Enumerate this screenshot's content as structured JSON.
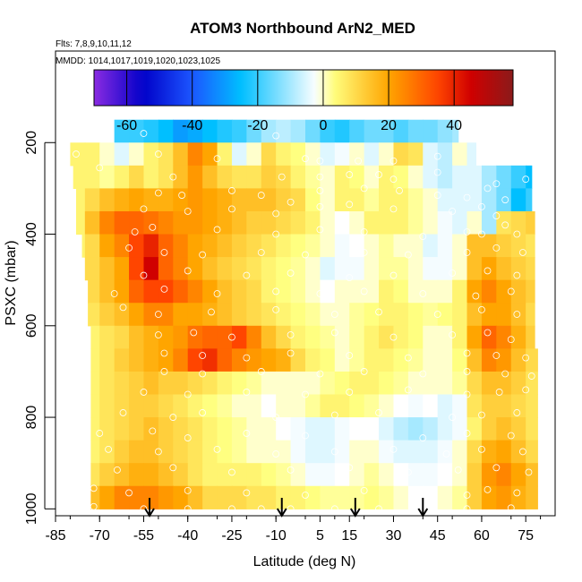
{
  "chart_data": {
    "type": "heatmap",
    "title": "ATOM3 Northbound ArN2_MED",
    "subtitle_flights": "Flts: 7,8,9,10,11,12",
    "subtitle_dates": "MMDD: 1014,1017,1019,1020,1023,1025",
    "xlabel": "Latitude (deg N)",
    "ylabel": "PSXC (mbar)",
    "x_ticks": [
      -85,
      -70,
      -55,
      -40,
      -25,
      -10,
      5,
      15,
      30,
      45,
      60,
      75
    ],
    "y_ticks": [
      200,
      400,
      600,
      800,
      1000
    ],
    "xlim": [
      -85,
      85
    ],
    "ylim": [
      1015,
      0
    ],
    "colorbar": {
      "ticks": [
        -60,
        -40,
        -20,
        0,
        20,
        40
      ],
      "range": [
        -70,
        58
      ],
      "colors": [
        "#8a2be2",
        "#0000c8",
        "#1c56ff",
        "#00bfff",
        "#ffffff",
        "#ffff80",
        "#ffa500",
        "#ff4500",
        "#d00000",
        "#8b1a1a"
      ]
    },
    "layers_mbar": [
      175,
      225,
      275,
      325,
      375,
      425,
      475,
      525,
      575,
      625,
      675,
      725,
      775,
      825,
      875,
      925,
      975
    ],
    "layer_extent_deg": [
      [
        -65,
        52
      ],
      [
        -80,
        58
      ],
      [
        -79,
        77
      ],
      [
        -78,
        77
      ],
      [
        -78,
        78
      ],
      [
        -76,
        78
      ],
      [
        -75,
        78
      ],
      [
        -74,
        78
      ],
      [
        -74,
        78
      ],
      [
        -73,
        78
      ],
      [
        -73,
        79
      ],
      [
        -73,
        79
      ],
      [
        -73,
        79
      ],
      [
        -73,
        79
      ],
      [
        -73,
        79
      ],
      [
        -73,
        79
      ],
      [
        -73,
        79
      ]
    ],
    "lat_bins_deg": [
      -80,
      -75,
      -70,
      -65,
      -60,
      -55,
      -50,
      -45,
      -40,
      -35,
      -30,
      -25,
      -20,
      -15,
      -10,
      -5,
      0,
      5,
      10,
      15,
      20,
      25,
      30,
      35,
      40,
      45,
      50,
      55,
      60,
      65,
      70,
      75
    ],
    "values": [
      [
        0,
        0,
        0,
        -20,
        -20,
        -22,
        -25,
        -30,
        -28,
        -25,
        -22,
        -20,
        -15,
        -10,
        -8,
        -10,
        -15,
        -20,
        -22,
        -18,
        -15,
        -15,
        -18,
        -15,
        -15,
        -12,
        -10,
        0,
        0,
        0,
        0,
        0
      ],
      [
        5,
        5,
        0,
        -5,
        0,
        5,
        8,
        15,
        25,
        20,
        5,
        -5,
        0,
        10,
        5,
        3,
        0,
        -5,
        -3,
        0,
        -5,
        0,
        10,
        8,
        -5,
        -8,
        0,
        -5,
        -5,
        -5,
        0,
        0
      ],
      [
        5,
        5,
        2,
        5,
        10,
        5,
        8,
        15,
        22,
        15,
        10,
        8,
        8,
        12,
        10,
        5,
        2,
        0,
        5,
        3,
        0,
        5,
        3,
        0,
        -5,
        -8,
        -5,
        -5,
        -10,
        -15,
        -20,
        -25
      ],
      [
        5,
        10,
        15,
        18,
        20,
        18,
        18,
        20,
        22,
        20,
        18,
        15,
        15,
        15,
        12,
        10,
        3,
        0,
        5,
        5,
        2,
        5,
        5,
        2,
        0,
        -5,
        -5,
        -5,
        -10,
        -15,
        -25,
        -20
      ],
      [
        5,
        15,
        25,
        30,
        30,
        28,
        25,
        22,
        22,
        20,
        18,
        15,
        12,
        12,
        10,
        8,
        5,
        0,
        -2,
        0,
        5,
        5,
        5,
        2,
        0,
        -3,
        -5,
        0,
        -10,
        8,
        10,
        12
      ],
      [
        5,
        10,
        20,
        25,
        35,
        40,
        30,
        25,
        20,
        18,
        15,
        12,
        10,
        8,
        5,
        3,
        2,
        0,
        -3,
        -2,
        0,
        2,
        0,
        0,
        -5,
        -3,
        0,
        15,
        15,
        12,
        10,
        8
      ],
      [
        5,
        10,
        15,
        20,
        35,
        45,
        30,
        25,
        20,
        15,
        12,
        10,
        8,
        5,
        3,
        2,
        0,
        -5,
        -3,
        -3,
        0,
        2,
        2,
        0,
        -3,
        -3,
        0,
        15,
        20,
        15,
        12,
        10
      ],
      [
        5,
        10,
        15,
        20,
        30,
        35,
        35,
        30,
        25,
        20,
        15,
        12,
        10,
        5,
        3,
        2,
        0,
        -2,
        0,
        0,
        0,
        5,
        3,
        0,
        0,
        0,
        5,
        20,
        25,
        20,
        15,
        12
      ],
      [
        3,
        8,
        12,
        15,
        20,
        25,
        25,
        20,
        20,
        18,
        15,
        12,
        10,
        8,
        5,
        3,
        2,
        0,
        0,
        2,
        3,
        5,
        5,
        3,
        2,
        3,
        5,
        15,
        20,
        20,
        15,
        10
      ],
      [
        3,
        5,
        8,
        10,
        15,
        18,
        20,
        22,
        28,
        30,
        30,
        35,
        25,
        15,
        10,
        5,
        3,
        2,
        0,
        2,
        5,
        8,
        5,
        3,
        0,
        0,
        5,
        20,
        30,
        25,
        18,
        12
      ],
      [
        3,
        5,
        8,
        12,
        15,
        18,
        20,
        25,
        35,
        38,
        30,
        25,
        22,
        20,
        18,
        10,
        5,
        3,
        0,
        2,
        5,
        5,
        3,
        2,
        0,
        0,
        3,
        15,
        25,
        22,
        15,
        10
      ],
      [
        3,
        5,
        8,
        10,
        12,
        15,
        12,
        12,
        10,
        8,
        5,
        3,
        2,
        0,
        0,
        0,
        0,
        2,
        3,
        5,
        5,
        3,
        2,
        0,
        0,
        0,
        2,
        10,
        15,
        15,
        12,
        8
      ],
      [
        2,
        5,
        8,
        10,
        12,
        12,
        10,
        8,
        5,
        3,
        2,
        0,
        0,
        -2,
        0,
        0,
        2,
        5,
        5,
        3,
        2,
        0,
        -2,
        -3,
        -2,
        -5,
        -3,
        8,
        12,
        12,
        10,
        8
      ],
      [
        2,
        5,
        8,
        10,
        12,
        15,
        12,
        10,
        8,
        5,
        3,
        2,
        0,
        0,
        -2,
        -3,
        -5,
        -5,
        -3,
        -2,
        -2,
        -5,
        -8,
        -10,
        -8,
        -5,
        -3,
        5,
        12,
        15,
        12,
        8
      ],
      [
        3,
        5,
        8,
        12,
        15,
        15,
        12,
        10,
        8,
        5,
        3,
        2,
        0,
        0,
        0,
        -3,
        -5,
        -5,
        -3,
        0,
        0,
        -3,
        -5,
        -5,
        -5,
        -3,
        0,
        10,
        18,
        20,
        15,
        10
      ],
      [
        5,
        8,
        12,
        15,
        18,
        18,
        15,
        12,
        8,
        5,
        5,
        5,
        5,
        3,
        2,
        0,
        -3,
        -3,
        -2,
        0,
        2,
        0,
        -2,
        -3,
        -3,
        -2,
        0,
        12,
        22,
        25,
        20,
        15
      ],
      [
        10,
        15,
        20,
        25,
        25,
        25,
        22,
        20,
        15,
        10,
        10,
        10,
        8,
        8,
        5,
        5,
        3,
        2,
        2,
        2,
        3,
        2,
        0,
        -2,
        -2,
        0,
        2,
        12,
        20,
        22,
        18,
        15
      ]
    ],
    "sample_points": [
      [
        -55,
        180
      ],
      [
        -50,
        225
      ],
      [
        -30,
        235
      ],
      [
        -10,
        185
      ],
      [
        0,
        235
      ],
      [
        5,
        240
      ],
      [
        18,
        240
      ],
      [
        30,
        240
      ],
      [
        45,
        230
      ],
      [
        -78,
        225
      ],
      [
        -70,
        255
      ],
      [
        -45,
        275
      ],
      [
        -8,
        275
      ],
      [
        5,
        275
      ],
      [
        15,
        270
      ],
      [
        25,
        270
      ],
      [
        30,
        280
      ],
      [
        45,
        265
      ],
      [
        65,
        290
      ],
      [
        75,
        280
      ],
      [
        -50,
        310
      ],
      [
        -42,
        315
      ],
      [
        -25,
        305
      ],
      [
        -15,
        315
      ],
      [
        5,
        305
      ],
      [
        20,
        300
      ],
      [
        32,
        305
      ],
      [
        45,
        315
      ],
      [
        55,
        320
      ],
      [
        62,
        300
      ],
      [
        68,
        325
      ],
      [
        -55,
        345
      ],
      [
        -40,
        350
      ],
      [
        -25,
        345
      ],
      [
        -10,
        355
      ],
      [
        -5,
        330
      ],
      [
        5,
        340
      ],
      [
        15,
        335
      ],
      [
        30,
        345
      ],
      [
        50,
        350
      ],
      [
        60,
        340
      ],
      [
        65,
        360
      ],
      [
        -58,
        395
      ],
      [
        -52,
        385
      ],
      [
        -30,
        390
      ],
      [
        -10,
        400
      ],
      [
        5,
        390
      ],
      [
        20,
        395
      ],
      [
        40,
        405
      ],
      [
        55,
        395
      ],
      [
        60,
        400
      ],
      [
        68,
        380
      ],
      [
        72,
        400
      ],
      [
        -60,
        430
      ],
      [
        -48,
        440
      ],
      [
        -35,
        445
      ],
      [
        -15,
        440
      ],
      [
        0,
        445
      ],
      [
        20,
        440
      ],
      [
        35,
        445
      ],
      [
        55,
        440
      ],
      [
        65,
        430
      ],
      [
        74,
        440
      ],
      [
        -55,
        490
      ],
      [
        -40,
        480
      ],
      [
        -20,
        490
      ],
      [
        -5,
        485
      ],
      [
        15,
        495
      ],
      [
        30,
        490
      ],
      [
        50,
        485
      ],
      [
        62,
        480
      ],
      [
        72,
        490
      ],
      [
        -65,
        530
      ],
      [
        -48,
        520
      ],
      [
        -30,
        530
      ],
      [
        -10,
        525
      ],
      [
        5,
        530
      ],
      [
        20,
        525
      ],
      [
        40,
        530
      ],
      [
        58,
        535
      ],
      [
        70,
        525
      ],
      [
        -62,
        560
      ],
      [
        -50,
        575
      ],
      [
        -32,
        570
      ],
      [
        -10,
        565
      ],
      [
        10,
        575
      ],
      [
        25,
        570
      ],
      [
        45,
        575
      ],
      [
        60,
        565
      ],
      [
        72,
        575
      ],
      [
        -50,
        620
      ],
      [
        -38,
        615
      ],
      [
        -25,
        625
      ],
      [
        -5,
        620
      ],
      [
        10,
        615
      ],
      [
        30,
        625
      ],
      [
        50,
        620
      ],
      [
        62,
        615
      ],
      [
        70,
        630
      ],
      [
        -48,
        660
      ],
      [
        -35,
        665
      ],
      [
        -20,
        670
      ],
      [
        -5,
        660
      ],
      [
        15,
        665
      ],
      [
        35,
        670
      ],
      [
        55,
        660
      ],
      [
        65,
        665
      ],
      [
        75,
        670
      ],
      [
        -48,
        700
      ],
      [
        -35,
        705
      ],
      [
        -15,
        700
      ],
      [
        5,
        705
      ],
      [
        20,
        700
      ],
      [
        40,
        705
      ],
      [
        55,
        700
      ],
      [
        68,
        705
      ],
      [
        77,
        710
      ],
      [
        -55,
        745
      ],
      [
        -40,
        750
      ],
      [
        -20,
        745
      ],
      [
        0,
        750
      ],
      [
        15,
        745
      ],
      [
        35,
        740
      ],
      [
        55,
        750
      ],
      [
        66,
        745
      ],
      [
        75,
        740
      ],
      [
        -62,
        790
      ],
      [
        -45,
        800
      ],
      [
        -35,
        790
      ],
      [
        -10,
        800
      ],
      [
        10,
        795
      ],
      [
        25,
        790
      ],
      [
        50,
        800
      ],
      [
        60,
        795
      ],
      [
        72,
        790
      ],
      [
        -70,
        835
      ],
      [
        -52,
        830
      ],
      [
        -40,
        845
      ],
      [
        -20,
        835
      ],
      [
        0,
        840
      ],
      [
        20,
        835
      ],
      [
        40,
        845
      ],
      [
        55,
        835
      ],
      [
        70,
        840
      ],
      [
        -67,
        870
      ],
      [
        -50,
        875
      ],
      [
        -30,
        870
      ],
      [
        -10,
        880
      ],
      [
        10,
        875
      ],
      [
        30,
        870
      ],
      [
        48,
        880
      ],
      [
        60,
        870
      ],
      [
        74,
        875
      ],
      [
        -64,
        915
      ],
      [
        -45,
        910
      ],
      [
        -25,
        920
      ],
      [
        -5,
        915
      ],
      [
        15,
        910
      ],
      [
        35,
        920
      ],
      [
        52,
        915
      ],
      [
        65,
        910
      ],
      [
        76,
        920
      ],
      [
        -78,
        960
      ],
      [
        -72,
        955
      ],
      [
        -60,
        965
      ],
      [
        -40,
        960
      ],
      [
        -20,
        965
      ],
      [
        0,
        970
      ],
      [
        20,
        960
      ],
      [
        40,
        965
      ],
      [
        55,
        970
      ],
      [
        62,
        958
      ],
      [
        72,
        965
      ],
      [
        -72,
        995
      ],
      [
        -55,
        1000
      ],
      [
        -40,
        1000
      ],
      [
        -25,
        1000
      ],
      [
        -15,
        1000
      ],
      [
        -5,
        1000
      ],
      [
        10,
        1000
      ],
      [
        25,
        1000
      ],
      [
        40,
        1000
      ],
      [
        55,
        1000
      ],
      [
        70,
        998
      ]
    ],
    "arrows_lat": [
      -53,
      -8,
      17,
      40
    ]
  }
}
